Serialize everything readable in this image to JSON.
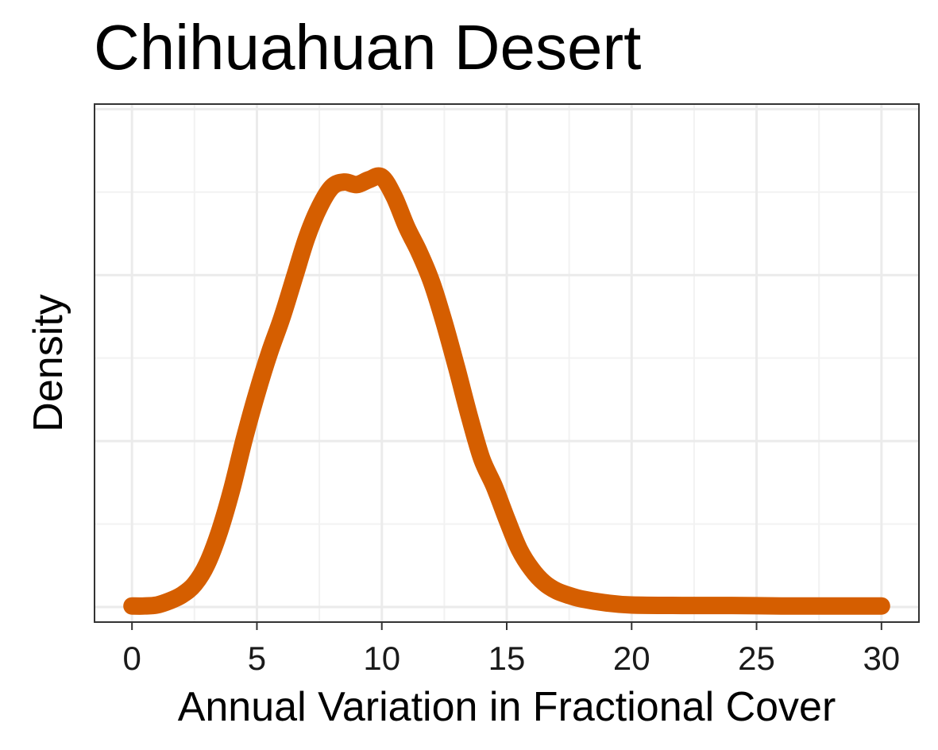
{
  "chart_data": {
    "type": "line",
    "title": "Chihuahuan Desert",
    "xlabel": "Annual Variation in Fractional Cover",
    "ylabel": "Density",
    "xlim": [
      -1.5,
      31.5
    ],
    "ylim": [
      -0.003,
      0.1
    ],
    "x_ticks": [
      0,
      5,
      10,
      15,
      20,
      25,
      30
    ],
    "x_tick_labels": [
      "0",
      "5",
      "10",
      "15",
      "20",
      "25",
      "30"
    ],
    "y_tick_labels": [],
    "grid": true,
    "legend": "none",
    "line_color": "#d55e00",
    "series": [
      {
        "x": [
          0,
          0.5,
          1,
          1.5,
          2,
          2.5,
          3,
          3.5,
          4,
          4.5,
          5,
          5.5,
          6,
          6.5,
          7,
          7.5,
          8,
          8.5,
          9,
          9.5,
          10,
          10.5,
          11,
          11.5,
          12,
          12.5,
          13,
          13.5,
          14,
          14.5,
          15,
          15.5,
          16,
          16.5,
          17,
          17.5,
          18,
          19,
          20,
          22,
          24,
          26,
          28,
          30
        ],
        "y": [
          0.0002,
          0.0002,
          0.0004,
          0.0012,
          0.0024,
          0.0045,
          0.0085,
          0.015,
          0.0235,
          0.0335,
          0.0425,
          0.0505,
          0.0575,
          0.0655,
          0.0735,
          0.0795,
          0.0835,
          0.0845,
          0.084,
          0.085,
          0.0855,
          0.0815,
          0.0755,
          0.0705,
          0.0645,
          0.0565,
          0.0475,
          0.038,
          0.0295,
          0.024,
          0.0175,
          0.0115,
          0.0075,
          0.0048,
          0.0032,
          0.0023,
          0.0016,
          0.0008,
          0.0004,
          0.0003,
          0.0003,
          0.0002,
          0.0002,
          0.0002
        ]
      }
    ]
  }
}
